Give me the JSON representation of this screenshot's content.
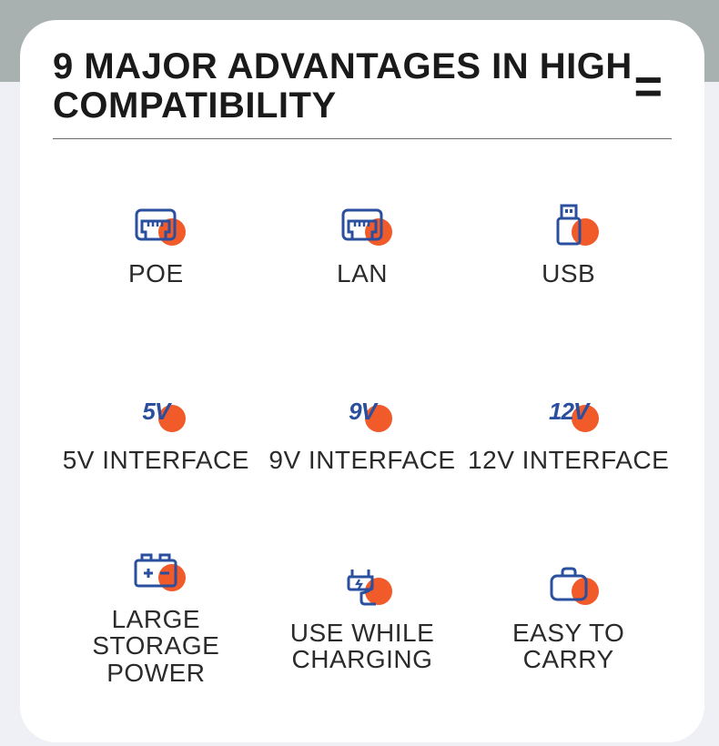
{
  "title": "9 MAJOR ADVANTAGES\nIN HIGH COMPATIBILITY",
  "menu_symbol": "=",
  "colors": {
    "icon_stroke": "#2a4f9e",
    "accent_dot": "#f15a29",
    "text": "#2b2b2b",
    "card_bg": "#ffffff"
  },
  "features": [
    {
      "id": "poe",
      "icon": "ethernet",
      "icon_text": "",
      "label": "POE"
    },
    {
      "id": "lan",
      "icon": "ethernet",
      "icon_text": "",
      "label": "LAN"
    },
    {
      "id": "usb",
      "icon": "usb",
      "icon_text": "",
      "label": "USB"
    },
    {
      "id": "5v",
      "icon": "text",
      "icon_text": "5V",
      "label": "5V INTERFACE"
    },
    {
      "id": "9v",
      "icon": "text",
      "icon_text": "9V",
      "label": "9V INTERFACE"
    },
    {
      "id": "12v",
      "icon": "text",
      "icon_text": "12V",
      "label": "12V INTERFACE"
    },
    {
      "id": "batt",
      "icon": "battery",
      "icon_text": "",
      "label": "LARGE\nSTORAGE\nPOWER"
    },
    {
      "id": "chg",
      "icon": "charge",
      "icon_text": "",
      "label": "USE WHILE\nCHARGING"
    },
    {
      "id": "carry",
      "icon": "bag",
      "icon_text": "",
      "label": "EASY TO\nCARRY"
    }
  ]
}
